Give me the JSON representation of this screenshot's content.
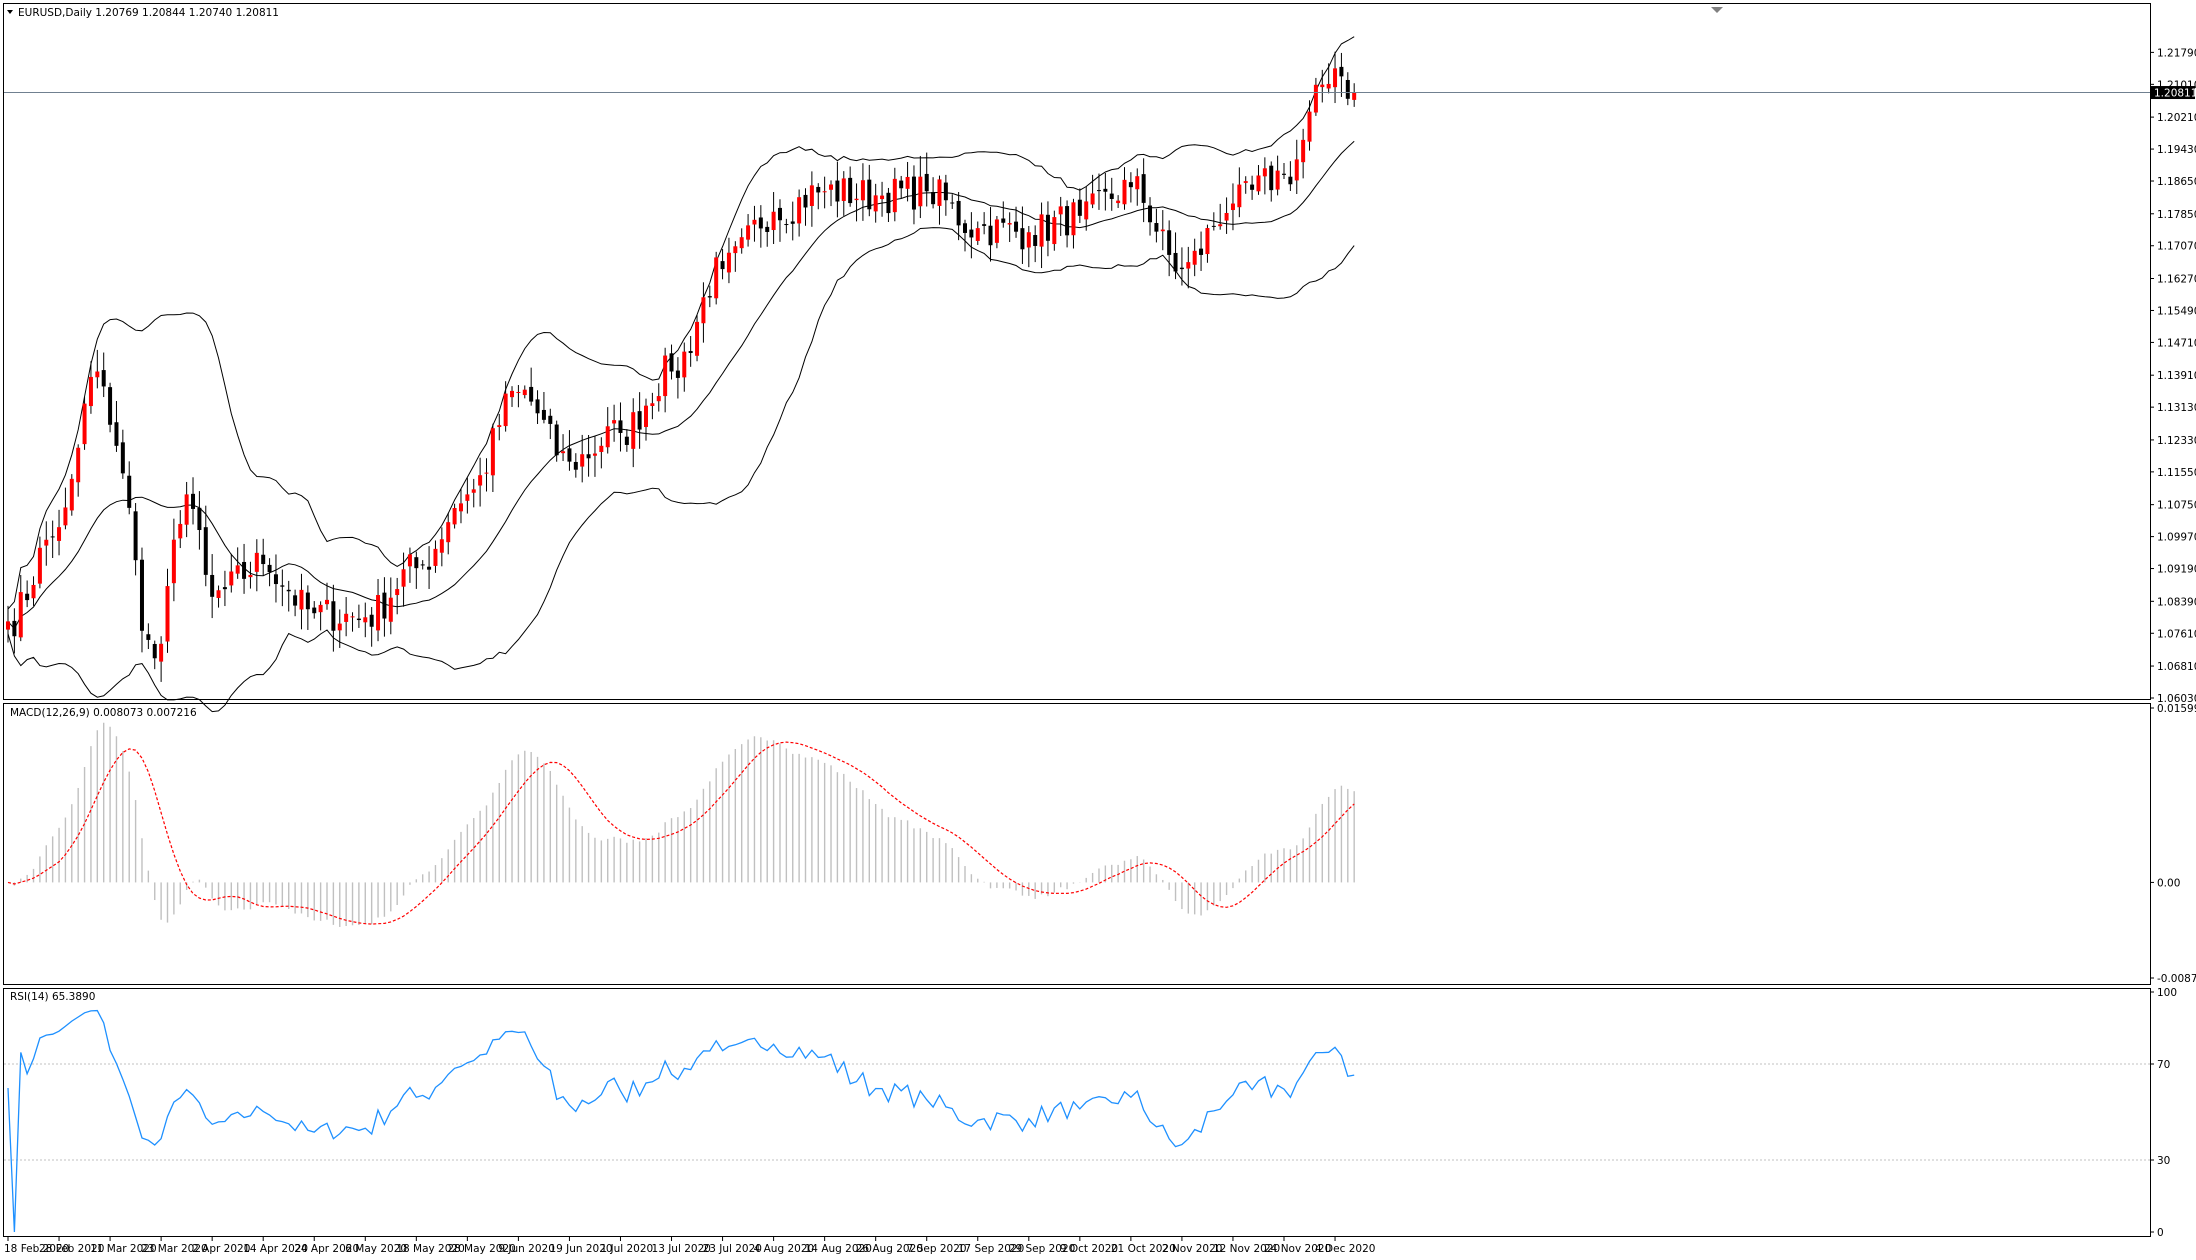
{
  "main": {
    "header": "EURUSD,Daily  1.20769 1.20844 1.20740 1.20811",
    "current_price": "1.20811",
    "price_ticks": [
      "1.21790",
      "1.21010",
      "1.20210",
      "1.19430",
      "1.18650",
      "1.17850",
      "1.17070",
      "1.16270",
      "1.15490",
      "1.14710",
      "1.13910",
      "1.13130",
      "1.12330",
      "1.11550",
      "1.10750",
      "1.09970",
      "1.09190",
      "1.08390",
      "1.07610",
      "1.06810",
      "1.06030"
    ]
  },
  "macd": {
    "header": "MACD(12,26,9) 0.008073 0.007216",
    "ticks": [
      "0.01599",
      "0.00",
      "-0.008763"
    ]
  },
  "rsi": {
    "header": "RSI(14) 65.3890",
    "ticks": [
      "100",
      "70",
      "30",
      "0"
    ],
    "levels": [
      70,
      30
    ]
  },
  "dates": [
    "18 Feb 2020",
    "28 Feb 2020",
    "11 Mar 2020",
    "23 Mar 2020",
    "2 Apr 2020",
    "14 Apr 2020",
    "24 Apr 2020",
    "6 May 2020",
    "18 May 2020",
    "28 May 2020",
    "9 Jun 2020",
    "19 Jun 2020",
    "1 Jul 2020",
    "13 Jul 2020",
    "23 Jul 2020",
    "4 Aug 2020",
    "14 Aug 2020",
    "26 Aug 2020",
    "7 Sep 2020",
    "17 Sep 2020",
    "29 Sep 2020",
    "9 Oct 2020",
    "21 Oct 2020",
    "2 Nov 2020",
    "12 Nov 2020",
    "24 Nov 2020",
    "4 Dec 2020"
  ],
  "colors": {
    "bull": "#ff0000",
    "bear": "#000000",
    "signal": "#ff0000",
    "histogram": "#c0c0c0",
    "rsi_line": "#1e90ff",
    "grid_level": "#c0c0c0",
    "current_line": "#708090"
  },
  "chart_data": {
    "type": "candlestick",
    "symbol": "EURUSD",
    "timeframe": "Daily",
    "ylim": [
      1.0603,
      1.2219
    ],
    "ohlc_anchors": [
      [
        "18 Feb 2020",
        1.079
      ],
      [
        "28 Feb 2020",
        1.102
      ],
      [
        "9 Mar 2020",
        1.14
      ],
      [
        "11 Mar 2020",
        1.127
      ],
      [
        "20 Mar 2020",
        1.07
      ],
      [
        "27 Mar 2020",
        1.11
      ],
      [
        "2 Apr 2020",
        1.085
      ],
      [
        "14 Apr 2020",
        1.093
      ],
      [
        "24 Apr 2020",
        1.081
      ],
      [
        "6 May 2020",
        1.08
      ],
      [
        "18 May 2020",
        1.092
      ],
      [
        "28 May 2020",
        1.11
      ],
      [
        "9 Jun 2020",
        1.135
      ],
      [
        "19 Jun 2020",
        1.118
      ],
      [
        "1 Jul 2020",
        1.125
      ],
      [
        "13 Jul 2020",
        1.14
      ],
      [
        "23 Jul 2020",
        1.165
      ],
      [
        "4 Aug 2020",
        1.179
      ],
      [
        "14 Aug 2020",
        1.184
      ],
      [
        "26 Aug 2020",
        1.183
      ],
      [
        "7 Sep 2020",
        1.184
      ],
      [
        "17 Sep 2020",
        1.175
      ],
      [
        "29 Sep 2020",
        1.174
      ],
      [
        "9 Oct 2020",
        1.178
      ],
      [
        "21 Oct 2020",
        1.185
      ],
      [
        "2 Nov 2020",
        1.165
      ],
      [
        "12 Nov 2020",
        1.181
      ],
      [
        "24 Nov 2020",
        1.188
      ],
      [
        "4 Dec 2020",
        1.214
      ],
      [
        "9 Dec 2020",
        1.2081
      ]
    ],
    "indicators": {
      "bollinger": true,
      "macd": {
        "value": 0.008073,
        "signal": 0.007216,
        "ylim": [
          -0.008763,
          0.01599
        ]
      },
      "rsi": {
        "value": 65.389,
        "ylim": [
          0,
          100
        ]
      }
    }
  }
}
